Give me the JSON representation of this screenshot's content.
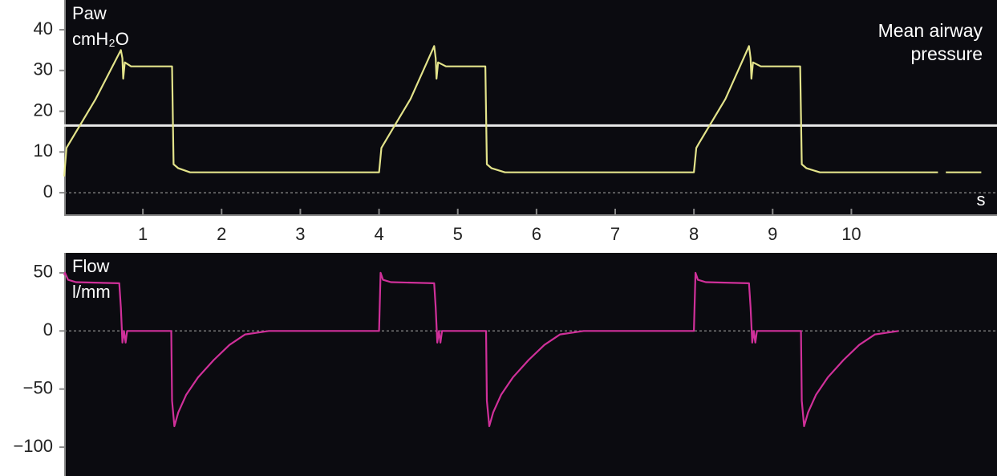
{
  "chart_data": [
    {
      "type": "line",
      "y_label": "Paw",
      "y_unit": "cmH₂O",
      "x_label": "s",
      "xlim": [
        0,
        11.85
      ],
      "ylim": [
        -5.5,
        47.3
      ],
      "xticks": [
        1,
        2,
        3,
        4,
        5,
        6,
        7,
        8,
        9,
        10
      ],
      "yticks": [
        0,
        10,
        20,
        30,
        40
      ],
      "x": [
        0,
        0.03,
        0.06,
        0.4,
        0.72,
        0.74,
        0.75,
        0.77,
        0.85,
        1.35,
        1.37,
        1.39,
        1.45,
        1.6,
        3.0,
        3.97,
        4.0,
        4.03,
        4.06,
        4.4,
        4.7,
        4.72,
        4.73,
        4.75,
        4.85,
        5.33,
        5.35,
        5.37,
        5.43,
        5.6,
        7.0,
        7.97,
        8.0,
        8.03,
        8.06,
        8.4,
        8.7,
        8.72,
        8.73,
        8.75,
        8.85,
        9.33,
        9.35,
        9.37,
        9.43,
        9.6,
        11.0,
        11.1,
        11.15,
        11.2,
        11.65
      ],
      "series": [
        {
          "name": "Paw",
          "color": "#e3e38a",
          "values": [
            4,
            11,
            12,
            23,
            35,
            33,
            28,
            32,
            31,
            31,
            31,
            7,
            6,
            5,
            5,
            5,
            5,
            11,
            12,
            23,
            36,
            33,
            28,
            32,
            31,
            31,
            31,
            7,
            6,
            5,
            5,
            5,
            5,
            11,
            12,
            23,
            36,
            33,
            28,
            32,
            31,
            31,
            31,
            7,
            6,
            5,
            5,
            5,
            null,
            5,
            5
          ]
        }
      ],
      "mean_line": {
        "label": "Mean airway pressure",
        "value": 16.5,
        "color": "#e8e8e8"
      }
    },
    {
      "type": "line",
      "y_label": "Flow",
      "y_unit": "l/mm",
      "xlim": [
        0,
        11.85
      ],
      "ylim": [
        -124.8,
        67.2
      ],
      "yticks": [
        50,
        0,
        {
          "value": -50,
          "label": "−50"
        },
        {
          "value": -100,
          "label": "−100"
        }
      ],
      "x": [
        0,
        0.01,
        0.05,
        0.15,
        0.7,
        0.72,
        0.74,
        0.76,
        0.78,
        0.8,
        0.84,
        1.36,
        1.37,
        1.4,
        1.45,
        1.55,
        1.7,
        1.9,
        2.1,
        2.3,
        2.6,
        3.97,
        4.0,
        4.02,
        4.05,
        4.15,
        4.7,
        4.72,
        4.74,
        4.76,
        4.78,
        4.8,
        4.84,
        5.36,
        5.37,
        5.4,
        5.45,
        5.55,
        5.7,
        5.9,
        6.1,
        6.3,
        6.6,
        7.97,
        8.0,
        8.02,
        8.05,
        8.15,
        8.7,
        8.72,
        8.74,
        8.76,
        8.78,
        8.8,
        8.84,
        9.36,
        9.37,
        9.4,
        9.45,
        9.55,
        9.7,
        9.9,
        10.1,
        10.3,
        10.6,
        10.6
      ],
      "series": [
        {
          "name": "Flow",
          "color": "#d0309a",
          "values": [
            48,
            50,
            44,
            42,
            41,
            20,
            -10,
            0,
            -10,
            0,
            0,
            0,
            -60,
            -82,
            -70,
            -55,
            -40,
            -25,
            -12,
            -3,
            0,
            0,
            0,
            50,
            44,
            42,
            41,
            20,
            -10,
            0,
            -10,
            0,
            0,
            0,
            -60,
            -82,
            -70,
            -55,
            -40,
            -25,
            -12,
            -3,
            0,
            0,
            0,
            50,
            44,
            42,
            41,
            20,
            -10,
            0,
            -10,
            0,
            0,
            0,
            -60,
            -82,
            -70,
            -55,
            -40,
            -25,
            -12,
            -3,
            0,
            0
          ]
        }
      ]
    }
  ]
}
